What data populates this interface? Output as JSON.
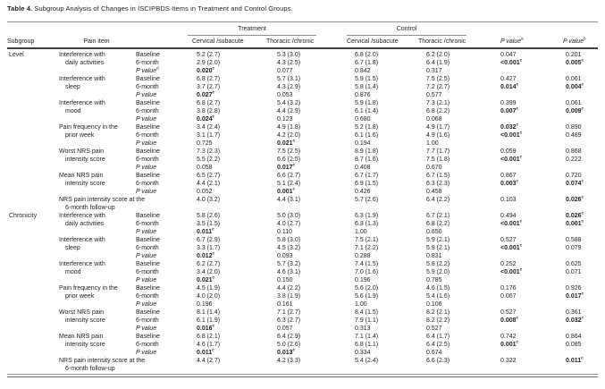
{
  "colors": {
    "bg": "#ffffff",
    "text": "#1d1d1d",
    "rule": "#909090",
    "rule_dark": "#3f3f3f"
  },
  "table": {
    "title_prefix": "Table 4.",
    "title_text": "Subgroup Analysis of Changes in ISCIPBDS Items in Treatment and Control Groups.",
    "header": {
      "subgroup": "Subgroup",
      "pain_item": "Pain item",
      "treatment_group": "Treatment",
      "control_group": "Control",
      "treatment_cervical": "Cervical /subacute",
      "treatment_thoracic": "Thoracic /chronic",
      "control_cervical": "Cervical /subacute",
      "control_thoracic": "Thoracic /chronic",
      "p_value_a": {
        "label": "P value",
        "sup": "a"
      },
      "p_value_b": {
        "label": "P value",
        "sup": "b"
      }
    },
    "sections": [
      {
        "subgroup": "Level",
        "items": [
          {
            "lines": [
              "Interference with",
              "daily activities"
            ],
            "rows": [
              {
                "label": "Baseline",
                "cells": [
                  "5.2 (2.7)",
                  "5.3 (3.0)",
                  "6.8 (2.0)",
                  "6.2 (2.0)",
                  "0.047",
                  "0.201"
                ]
              },
              {
                "label": "6-month",
                "cells": [
                  "2.9 (2.0)",
                  "4.3 (2.5)",
                  "6.7 (1.8)",
                  "6.4 (1.9)",
                  {
                    "t": "<0.001",
                    "sup": "c",
                    "b": true
                  },
                  {
                    "t": "0.005",
                    "sup": "c",
                    "b": true
                  }
                ]
              },
              {
                "label": "P value",
                "label_sup": "d",
                "cells": [
                  {
                    "t": "0.020",
                    "sup": "c",
                    "b": true
                  },
                  "0.077",
                  "0.842",
                  "0.317",
                  "",
                  ""
                ]
              }
            ]
          },
          {
            "lines": [
              "Interference with",
              "sleep"
            ],
            "rows": [
              {
                "label": "Baseline",
                "cells": [
                  "6.8 (2.7)",
                  "5.7 (3.1)",
                  "5.9 (1.5)",
                  "7.5 (2.5)",
                  "0.427",
                  "0.061"
                ]
              },
              {
                "label": "6-month",
                "cells": [
                  "3.7 (2.7)",
                  "4.3 (2.9)",
                  "5.8 (1.4)",
                  "7.2 (2.7)",
                  {
                    "t": "0.014",
                    "sup": "c",
                    "b": true
                  },
                  {
                    "t": "0.004",
                    "sup": "c",
                    "b": true
                  }
                ]
              },
              {
                "label": "P value",
                "cells": [
                  {
                    "t": "0.027",
                    "sup": "c",
                    "b": true
                  },
                  "0.053",
                  "0.876",
                  "0.577",
                  "",
                  ""
                ]
              }
            ]
          },
          {
            "lines": [
              "Interference with",
              "mood"
            ],
            "rows": [
              {
                "label": "Baseline",
                "cells": [
                  "6.8 (2.7)",
                  "5.4 (3.2)",
                  "5.9 (1.8)",
                  "7.3 (2.1)",
                  "0.399",
                  "0.061"
                ]
              },
              {
                "label": "6-month",
                "cells": [
                  "3.8 (2.8)",
                  "4.4 (2.9)",
                  "6.1 (1.4)",
                  "6.8 (2.2)",
                  {
                    "t": "0.007",
                    "sup": "c",
                    "b": true
                  },
                  {
                    "t": "0.009",
                    "sup": "c",
                    "b": true
                  }
                ]
              },
              {
                "label": "P value",
                "cells": [
                  {
                    "t": "0.024",
                    "sup": "c",
                    "b": true
                  },
                  "0.123",
                  "0.680",
                  "0.068",
                  "",
                  ""
                ]
              }
            ]
          },
          {
            "lines": [
              "Pain frequency in the",
              "prior week"
            ],
            "rows": [
              {
                "label": "Baseline",
                "cells": [
                  "3.4 (2.4)",
                  "4.9 (1.8)",
                  "5.2 (1.8)",
                  "4.9 (1.7)",
                  {
                    "t": "0.032",
                    "sup": "c",
                    "b": true
                  },
                  "0.890"
                ]
              },
              {
                "label": "6-month",
                "cells": [
                  "3.1 (1.7)",
                  "4.2 (2.0)",
                  "6.1 (1.6)",
                  "4.9 (1.6)",
                  {
                    "t": "<0.001",
                    "sup": "c",
                    "b": true
                  },
                  "0.489"
                ]
              },
              {
                "label": "P value",
                "cells": [
                  "0.725",
                  {
                    "t": "0.021",
                    "sup": "c",
                    "b": true
                  },
                  "0.194",
                  "1.00",
                  "",
                  ""
                ]
              }
            ]
          },
          {
            "lines": [
              "Worst NRS pain",
              "intensity score"
            ],
            "rows": [
              {
                "label": "Baseline",
                "cells": [
                  "7.3 (2.3)",
                  "7.5 (2.5)",
                  "8.9 (1.8)",
                  "7.7 (1.7)",
                  "0.059",
                  "0.868"
                ]
              },
              {
                "label": "6-month",
                "cells": [
                  "5.5 (2.2)",
                  "6.6 (2.5)",
                  "8.7 (1.6)",
                  "7.5 (1.8)",
                  {
                    "t": "<0.001",
                    "sup": "c",
                    "b": true
                  },
                  "0.222"
                ]
              },
              {
                "label": "P value",
                "cells": [
                  "0.058",
                  {
                    "t": "0.017",
                    "sup": "c",
                    "b": true
                  },
                  "0.408",
                  "0.670",
                  "",
                  ""
                ]
              }
            ]
          },
          {
            "lines": [
              "Mean NRS pain",
              "intensity score"
            ],
            "rows": [
              {
                "label": "Baseline",
                "cells": [
                  "6.5 (2.7)",
                  "6.6 (2.7)",
                  "6.7 (1.7)",
                  "6.7 (1.5)",
                  "0.867",
                  "0.720"
                ]
              },
              {
                "label": "6-month",
                "cells": [
                  "4.4 (2.1)",
                  "5.1 (2.4)",
                  "6.9 (1.5)",
                  "6.3 (2.3)",
                  {
                    "t": "0.003",
                    "sup": "c",
                    "b": true
                  },
                  {
                    "t": "0.074",
                    "sup": "c",
                    "b": true
                  }
                ]
              },
              {
                "label": "P value",
                "cells": [
                  "0.052",
                  {
                    "t": "0.001",
                    "sup": "c",
                    "b": true
                  },
                  "0.426",
                  "0.458",
                  "",
                  ""
                ]
              }
            ]
          },
          {
            "single": true,
            "lines": [
              "NRS pain intensity score at the",
              "6-month follow-up"
            ],
            "rows": [
              {
                "label": "",
                "cells": [
                  "4.0 (3.2)",
                  "4.4 (3.1)",
                  "5.7 (2.6)",
                  "6.4 (2.2)",
                  "0.103",
                  {
                    "t": "0.026",
                    "sup": "c",
                    "b": true
                  }
                ]
              }
            ]
          }
        ]
      },
      {
        "subgroup": "Chronicity",
        "items": [
          {
            "lines": [
              "Interference with",
              "daily activities"
            ],
            "rows": [
              {
                "label": "Baseline",
                "cells": [
                  "5.8 (2.6)",
                  "5.0 (3.0)",
                  "6.3 (1.9)",
                  "6.7 (2.1)",
                  "0.494",
                  {
                    "t": "0.026",
                    "sup": "c",
                    "b": true
                  }
                ]
              },
              {
                "label": "6-month",
                "cells": [
                  "3.5 (1.5)",
                  "4.0 (2.7)",
                  "6.3 (1.3)",
                  "6.8 (2.2)",
                  {
                    "t": "<0.001",
                    "sup": "c",
                    "b": true
                  },
                  {
                    "t": "0.001",
                    "sup": "c",
                    "b": true
                  }
                ]
              },
              {
                "label": "P value",
                "cells": [
                  {
                    "t": "0.011",
                    "sup": "c",
                    "b": true
                  },
                  "0.110",
                  "1.00",
                  "0.650",
                  "",
                  ""
                ]
              }
            ]
          },
          {
            "lines": [
              "Interference with",
              "sleep"
            ],
            "rows": [
              {
                "label": "Baseline",
                "cells": [
                  "6.7 (2.9)",
                  "5.8 (3.0)",
                  "7.5 (2.1)",
                  "5.9 (2.1)",
                  "0.527",
                  "0.588"
                ]
              },
              {
                "label": "6-month",
                "cells": [
                  "3.3 (1.7)",
                  "4.5 (3.2)",
                  "7.1 (2.2)",
                  "5.9 (2.1)",
                  {
                    "t": "<0.001",
                    "sup": "c",
                    "b": true
                  },
                  "0.079"
                ]
              },
              {
                "label": "P value",
                "cells": [
                  {
                    "t": "0.012",
                    "sup": "c",
                    "b": true
                  },
                  "0.093",
                  "0.288",
                  "0.831",
                  "",
                  ""
                ]
              }
            ]
          },
          {
            "lines": [
              "Interference with",
              "mood"
            ],
            "rows": [
              {
                "label": "Baseline",
                "cells": [
                  "6.2 (2.7)",
                  "5.7 (3.2)",
                  "7.4 (1.5)",
                  "5.8 (2.2)",
                  "0.252",
                  "0.625"
                ]
              },
              {
                "label": "6-month",
                "cells": [
                  "3.4 (2.0)",
                  "4.6 (3.1)",
                  "7.0 (1.6)",
                  "5.9 (2.0)",
                  {
                    "t": "<0.001",
                    "sup": "c",
                    "b": true
                  },
                  "0.071"
                ]
              },
              {
                "label": "P value",
                "cells": [
                  {
                    "t": "0.021",
                    "sup": "c",
                    "b": true
                  },
                  "0.150",
                  "0.196",
                  "0.785",
                  "",
                  ""
                ]
              }
            ]
          },
          {
            "lines": [
              "Pain frequency in the",
              "prior week"
            ],
            "rows": [
              {
                "label": "Baseline",
                "cells": [
                  "4.5 (1.9)",
                  "4.4 (2.2)",
                  "5.6 (2.0)",
                  "4.6 (1.5)",
                  "0.176",
                  "0.926"
                ]
              },
              {
                "label": "6-month",
                "cells": [
                  "4.0 (2.0)",
                  "3.8 (1.9)",
                  "5.6 (1.9)",
                  "5.4 (1.6)",
                  "0.067",
                  {
                    "t": "0.017",
                    "sup": "c",
                    "b": true
                  }
                ]
              },
              {
                "label": "P value",
                "cells": [
                  "0.196",
                  "0.161",
                  "1.00",
                  "0.106",
                  "",
                  ""
                ]
              }
            ]
          },
          {
            "lines": [
              "Worst NRS pain",
              "intensity score"
            ],
            "rows": [
              {
                "label": "Baseline",
                "cells": [
                  "8.1 (1.4)",
                  "7.1 (2.7)",
                  "8.4 (1.5)",
                  "8.2 (2.1)",
                  "0.527",
                  "0.361"
                ]
              },
              {
                "label": "6-month",
                "cells": [
                  "6.1 (1.9)",
                  "6.3 (2.7)",
                  "7.9 (1.1)",
                  "8.2 (2.2)",
                  {
                    "t": "0.008",
                    "sup": "c",
                    "b": true
                  },
                  {
                    "t": "0.032",
                    "sup": "c",
                    "b": true
                  }
                ]
              },
              {
                "label": "P value",
                "cells": [
                  {
                    "t": "0.016",
                    "sup": "c",
                    "b": true
                  },
                  "0.057",
                  "0.313",
                  "0.527",
                  "",
                  ""
                ]
              }
            ]
          },
          {
            "lines": [
              "Mean NRS pain",
              "intensity score"
            ],
            "rows": [
              {
                "label": "Baseline",
                "cells": [
                  "6.8 (2.1)",
                  "6.4 (2.9)",
                  "7.1 (1.4)",
                  "6.4 (1.7)",
                  "0.742",
                  "0.864"
                ]
              },
              {
                "label": "6-month",
                "cells": [
                  "4.6 (1.7)",
                  "5.0 (2.6)",
                  "6.8 (1.1)",
                  "6.4 (2.5)",
                  {
                    "t": "0.001",
                    "sup": "c",
                    "b": true
                  },
                  "0.085"
                ]
              },
              {
                "label": "P value",
                "cells": [
                  {
                    "t": "0.011",
                    "sup": "c",
                    "b": true
                  },
                  {
                    "t": "0.013",
                    "sup": "c",
                    "b": true
                  },
                  "0.334",
                  "0.674",
                  "",
                  ""
                ]
              }
            ]
          },
          {
            "single": true,
            "lines": [
              "NRS pain intensity score at the",
              "6-month follow-up"
            ],
            "rows": [
              {
                "label": "",
                "cells": [
                  "4.4 (2.7)",
                  "4.2 (3.3)",
                  "5.4 (2.4)",
                  "6.6 (2.3)",
                  "0.322",
                  {
                    "t": "0.011",
                    "sup": "c",
                    "b": true
                  }
                ]
              }
            ]
          }
        ]
      }
    ]
  }
}
